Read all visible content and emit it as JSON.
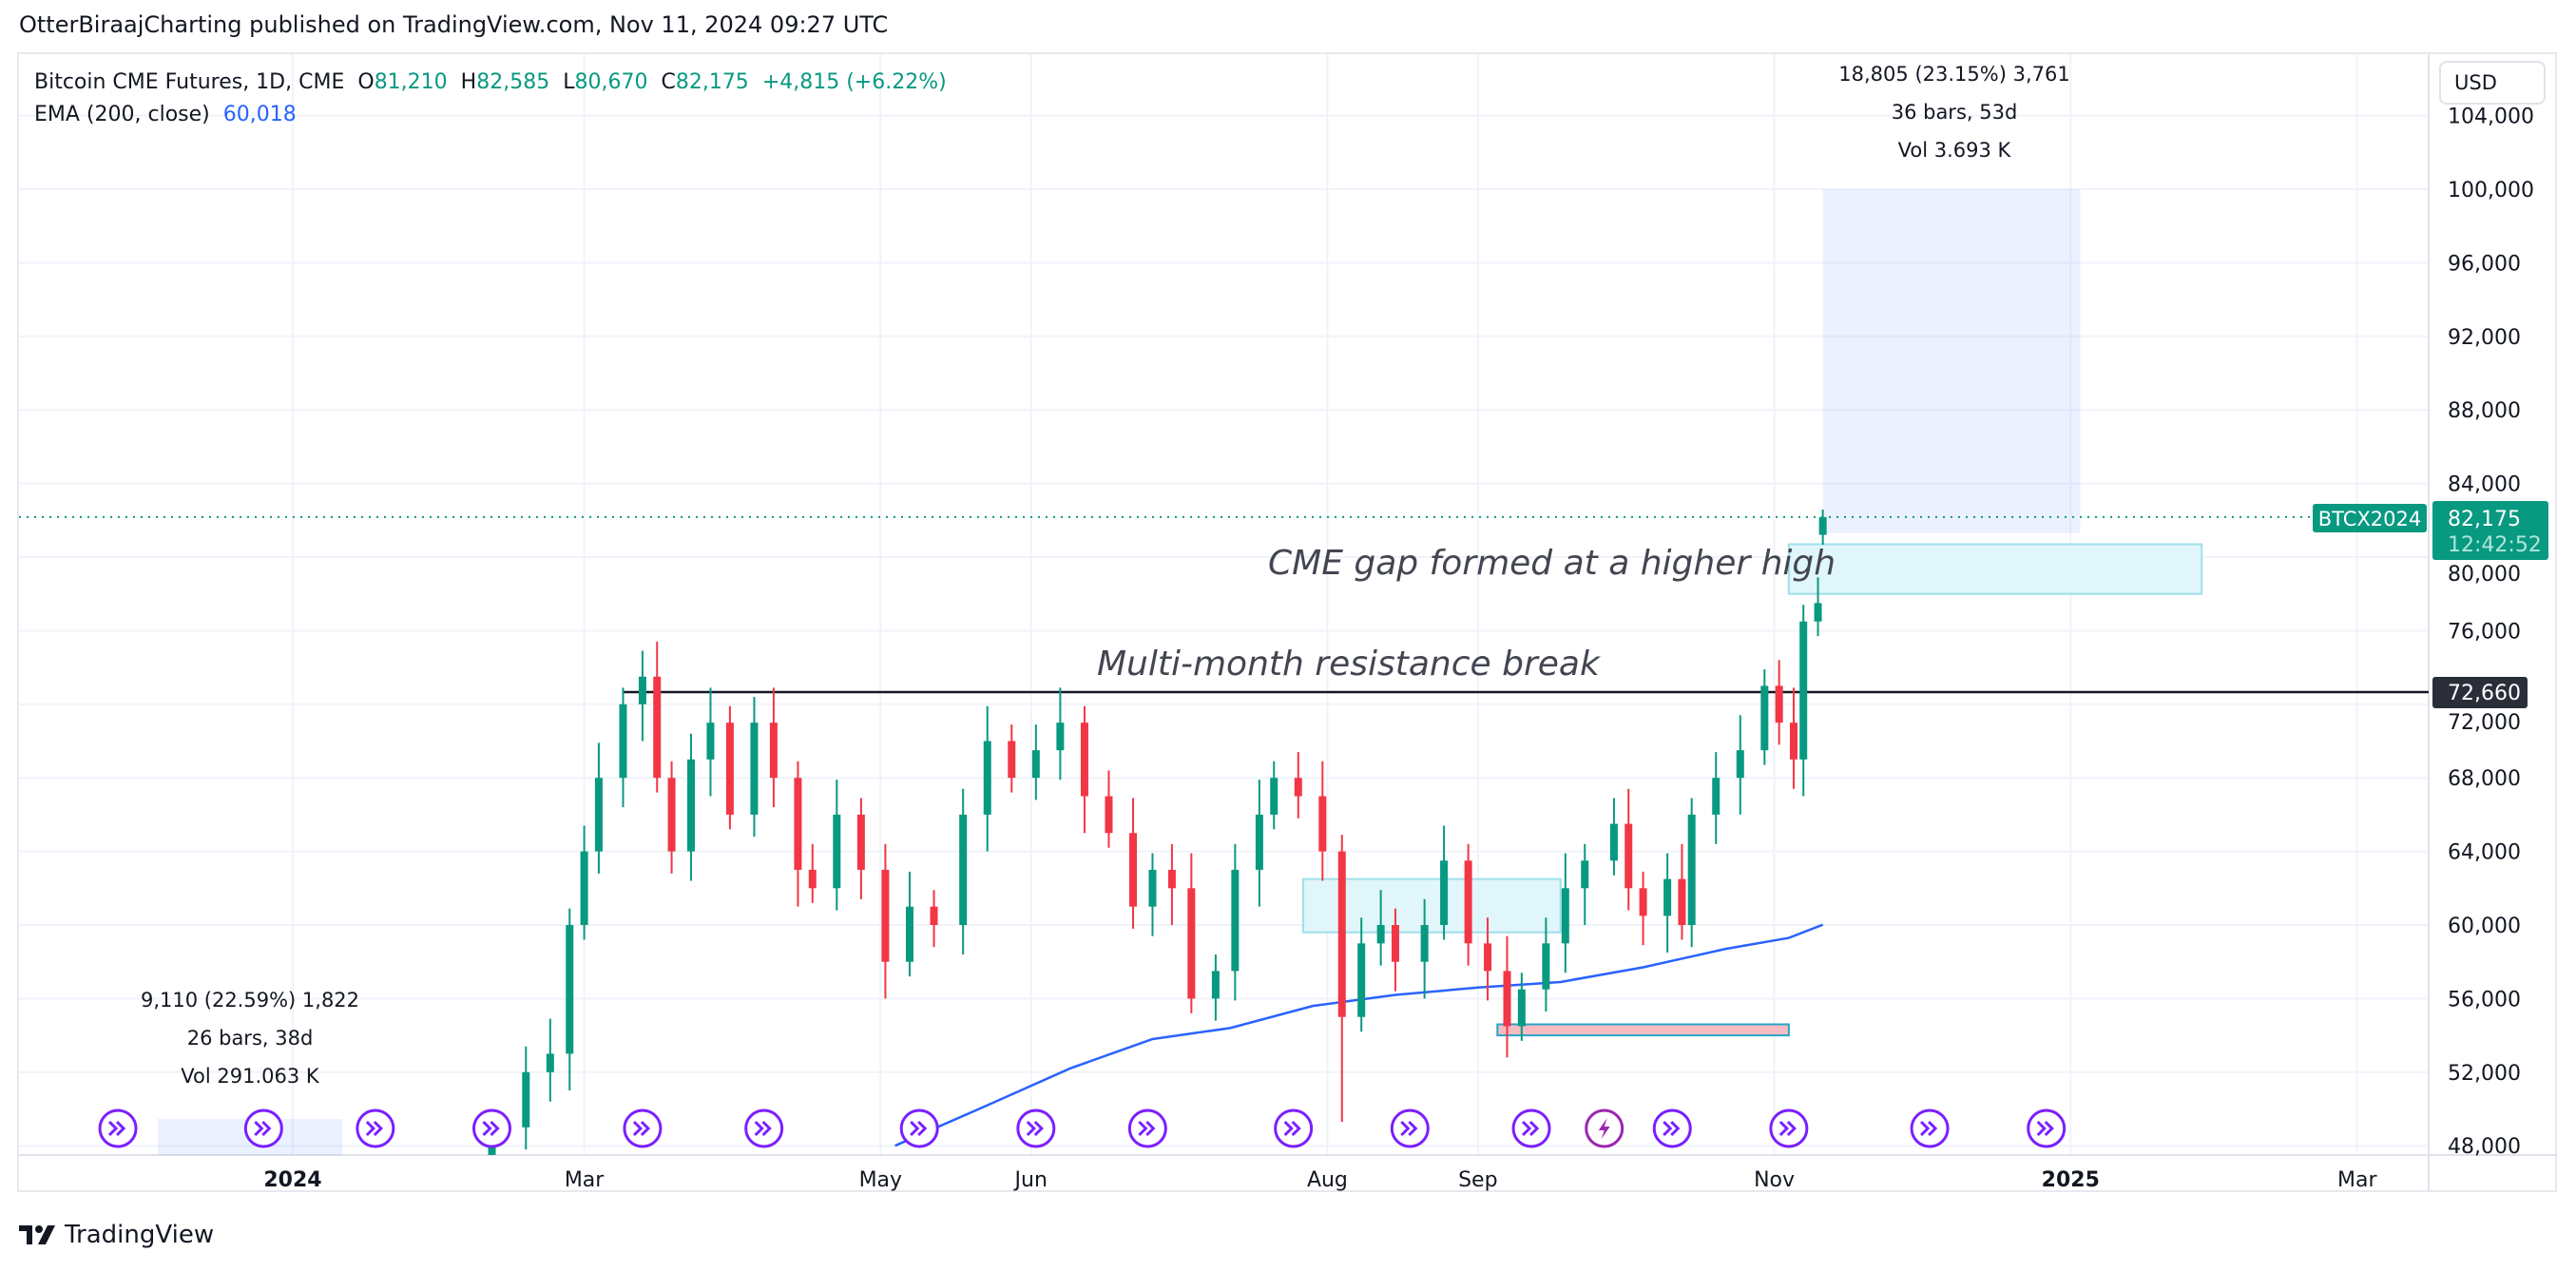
{
  "published": "OtterBiraajCharting published on TradingView.com, Nov 11, 2024 09:27 UTC",
  "legend": {
    "symbol": "Bitcoin CME Futures, 1D, CME",
    "open_label": "O",
    "open": "81,210",
    "high_label": "H",
    "high": "82,585",
    "low_label": "L",
    "low": "80,670",
    "close_label": "C",
    "close": "82,175",
    "change": "+4,815 (+6.22%)",
    "ema_label": "EMA (200, close)",
    "ema_value": "60,018"
  },
  "currency_button": "USD",
  "price_label": {
    "ticker": "BTCX2024",
    "price": "82,175",
    "countdown": "12:42:52"
  },
  "resistance_label": "72,660",
  "annotations": {
    "resistance_text": "Multi-month resistance break",
    "gap_text": "CME gap formed at a higher high"
  },
  "measure_top": {
    "line1": "18,805 (23.15%) 3,761",
    "line2": "36 bars, 53d",
    "line3": "Vol 3.693 K"
  },
  "measure_bottom": {
    "line1": "9,110 (22.59%) 1,822",
    "line2": "26 bars, 38d",
    "line3": "Vol 291.063 K"
  },
  "footer_logo": "TradingView",
  "colors": {
    "up": "#089981",
    "down": "#f23645",
    "ema": "#2962ff",
    "event": "#7b1fff",
    "event_special": "#9c27b0"
  },
  "chart_data": {
    "type": "candlestick",
    "ylim": [
      48000,
      104000
    ],
    "y_ticks": [
      48000,
      52000,
      56000,
      60000,
      64000,
      68000,
      72000,
      76000,
      80000,
      84000,
      88000,
      92000,
      96000,
      100000,
      104000
    ],
    "y_tick_labels": [
      "48,000",
      "52,000",
      "56,000",
      "60,000",
      "64,000",
      "68,000",
      "72,000",
      "76,000",
      "80,000",
      "84,000",
      "88,000",
      "92,000",
      "96,000",
      "100,000",
      "104,000"
    ],
    "x_ticks": [
      {
        "date": "2024-01-01",
        "label": "2024",
        "bold": true
      },
      {
        "date": "2024-03-01",
        "label": "Mar"
      },
      {
        "date": "2024-05-01",
        "label": "May"
      },
      {
        "date": "2024-06-01",
        "label": "Jun"
      },
      {
        "date": "2024-08-01",
        "label": "Aug"
      },
      {
        "date": "2024-09-01",
        "label": "Sep"
      },
      {
        "date": "2024-11-01",
        "label": "Nov"
      },
      {
        "date": "2025-01-01",
        "label": "2025",
        "bold": true
      },
      {
        "date": "2025-03-01",
        "label": "Mar"
      }
    ],
    "closes": [
      [
        "2024-02-11",
        49000
      ],
      [
        "2024-02-18",
        52000
      ],
      [
        "2024-02-23",
        53000
      ],
      [
        "2024-02-27",
        60000
      ],
      [
        "2024-03-01",
        64000
      ],
      [
        "2024-03-04",
        68000
      ],
      [
        "2024-03-09",
        72000
      ],
      [
        "2024-03-13",
        73500
      ],
      [
        "2024-03-16",
        68000
      ],
      [
        "2024-03-19",
        64000
      ],
      [
        "2024-03-23",
        69000
      ],
      [
        "2024-03-27",
        71000
      ],
      [
        "2024-03-31",
        66000
      ],
      [
        "2024-04-05",
        71000
      ],
      [
        "2024-04-09",
        68000
      ],
      [
        "2024-04-14",
        63000
      ],
      [
        "2024-04-17",
        62000
      ],
      [
        "2024-04-22",
        66000
      ],
      [
        "2024-04-27",
        63000
      ],
      [
        "2024-05-02",
        58000
      ],
      [
        "2024-05-07",
        61000
      ],
      [
        "2024-05-12",
        60000
      ],
      [
        "2024-05-18",
        66000
      ],
      [
        "2024-05-23",
        70000
      ],
      [
        "2024-05-28",
        68000
      ],
      [
        "2024-06-02",
        69500
      ],
      [
        "2024-06-07",
        71000
      ],
      [
        "2024-06-12",
        67000
      ],
      [
        "2024-06-17",
        65000
      ],
      [
        "2024-06-22",
        61000
      ],
      [
        "2024-06-26",
        63000
      ],
      [
        "2024-06-30",
        62000
      ],
      [
        "2024-07-04",
        56000
      ],
      [
        "2024-07-09",
        57500
      ],
      [
        "2024-07-13",
        63000
      ],
      [
        "2024-07-18",
        66000
      ],
      [
        "2024-07-21",
        68000
      ],
      [
        "2024-07-26",
        67000
      ],
      [
        "2024-07-31",
        64000
      ],
      [
        "2024-08-04",
        55000
      ],
      [
        "2024-08-08",
        59000
      ],
      [
        "2024-08-12",
        60000
      ],
      [
        "2024-08-15",
        58000
      ],
      [
        "2024-08-21",
        60000
      ],
      [
        "2024-08-25",
        63500
      ],
      [
        "2024-08-30",
        59000
      ],
      [
        "2024-09-03",
        57500
      ],
      [
        "2024-09-07",
        54500
      ],
      [
        "2024-09-10",
        56500
      ],
      [
        "2024-09-15",
        59000
      ],
      [
        "2024-09-19",
        62000
      ],
      [
        "2024-09-23",
        63500
      ],
      [
        "2024-09-29",
        65500
      ],
      [
        "2024-10-02",
        62000
      ],
      [
        "2024-10-05",
        60500
      ],
      [
        "2024-10-10",
        62500
      ],
      [
        "2024-10-13",
        60000
      ],
      [
        "2024-10-15",
        66000
      ],
      [
        "2024-10-20",
        68000
      ],
      [
        "2024-10-25",
        69500
      ],
      [
        "2024-10-30",
        73000
      ],
      [
        "2024-11-02",
        71000
      ],
      [
        "2024-11-05",
        69000
      ],
      [
        "2024-11-07",
        76500
      ],
      [
        "2024-11-10",
        77500
      ],
      [
        "2024-11-11",
        82175
      ]
    ],
    "last_candle": {
      "date": "2024-11-11",
      "open": 81210,
      "high": 82585,
      "low": 80670,
      "close": 82175
    },
    "ema_200": [
      [
        "2024-05-04",
        48000
      ],
      [
        "2024-05-23",
        50200
      ],
      [
        "2024-06-09",
        52200
      ],
      [
        "2024-06-26",
        53800
      ],
      [
        "2024-07-12",
        54400
      ],
      [
        "2024-07-29",
        55600
      ],
      [
        "2024-08-15",
        56200
      ],
      [
        "2024-09-01",
        56600
      ],
      [
        "2024-09-18",
        56900
      ],
      [
        "2024-10-05",
        57700
      ],
      [
        "2024-10-22",
        58700
      ],
      [
        "2024-11-04",
        59300
      ],
      [
        "2024-11-11",
        60018
      ]
    ],
    "resistance": {
      "from": "2024-03-09",
      "price": 72660
    },
    "zones": [
      {
        "kind": "gap",
        "from": "2024-11-04",
        "to": "2025-01-28",
        "top": 80700,
        "bottom": 78000
      },
      {
        "kind": "measure",
        "from": "2024-11-11",
        "to": "2025-01-03",
        "top": 100000,
        "bottom": 81300
      },
      {
        "kind": "box",
        "from": "2024-07-27",
        "to": "2024-09-18",
        "top": 62500,
        "bottom": 59600
      },
      {
        "kind": "pink",
        "from": "2024-09-05",
        "to": "2024-11-04",
        "top": 54600,
        "bottom": 54000
      }
    ],
    "events": [
      {
        "date": "2023-11-26"
      },
      {
        "date": "2023-12-26"
      },
      {
        "date": "2024-01-18"
      },
      {
        "date": "2024-02-11"
      },
      {
        "date": "2024-03-13"
      },
      {
        "date": "2024-04-07"
      },
      {
        "date": "2024-05-09"
      },
      {
        "date": "2024-06-02"
      },
      {
        "date": "2024-06-25"
      },
      {
        "date": "2024-07-25"
      },
      {
        "date": "2024-08-18"
      },
      {
        "date": "2024-09-12"
      },
      {
        "date": "2024-09-27",
        "special": true
      },
      {
        "date": "2024-10-11"
      },
      {
        "date": "2024-11-04"
      },
      {
        "date": "2024-12-03"
      },
      {
        "date": "2024-12-27"
      }
    ]
  }
}
